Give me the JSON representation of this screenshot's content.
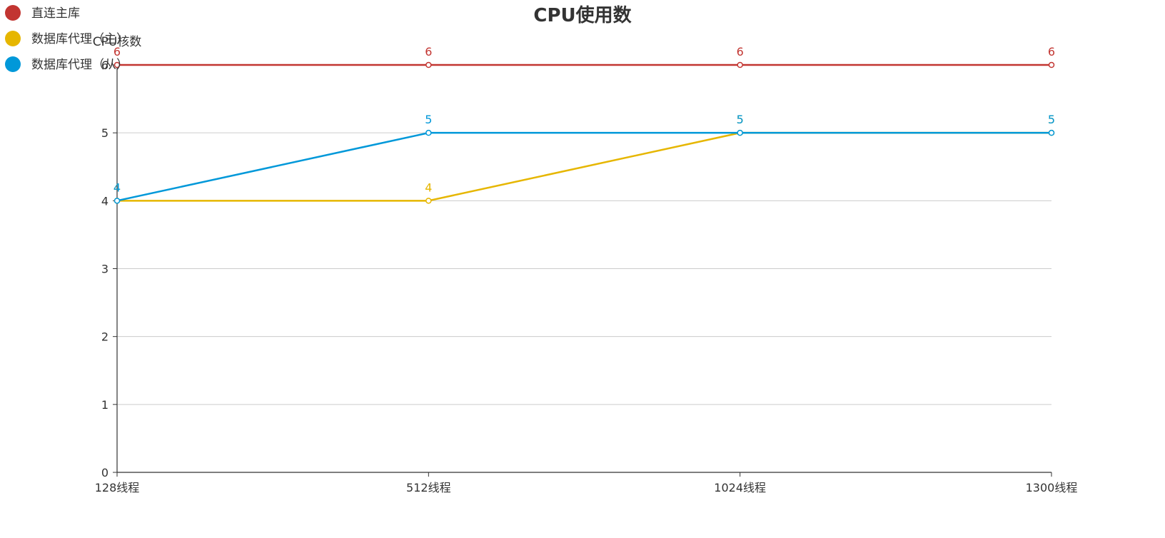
{
  "chart_data": {
    "type": "line",
    "title": "CPU使用数",
    "xlabel": "",
    "ylabel": "CPU核数",
    "categories": [
      "128线程",
      "512线程",
      "1024线程",
      "1300线程"
    ],
    "ylim": [
      0,
      6
    ],
    "yticks": [
      0,
      1,
      2,
      3,
      4,
      5,
      6
    ],
    "grid": true,
    "legend_position": "top-left",
    "series": [
      {
        "name": "直连主库",
        "values": [
          6,
          6,
          6,
          6
        ],
        "color": "#c23531"
      },
      {
        "name": "数据库代理（主）",
        "values": [
          4,
          4,
          5,
          5
        ],
        "color": "#e6b600"
      },
      {
        "name": "数据库代理（从）",
        "values": [
          4,
          5,
          5,
          5
        ],
        "color": "#0098d9"
      }
    ]
  }
}
